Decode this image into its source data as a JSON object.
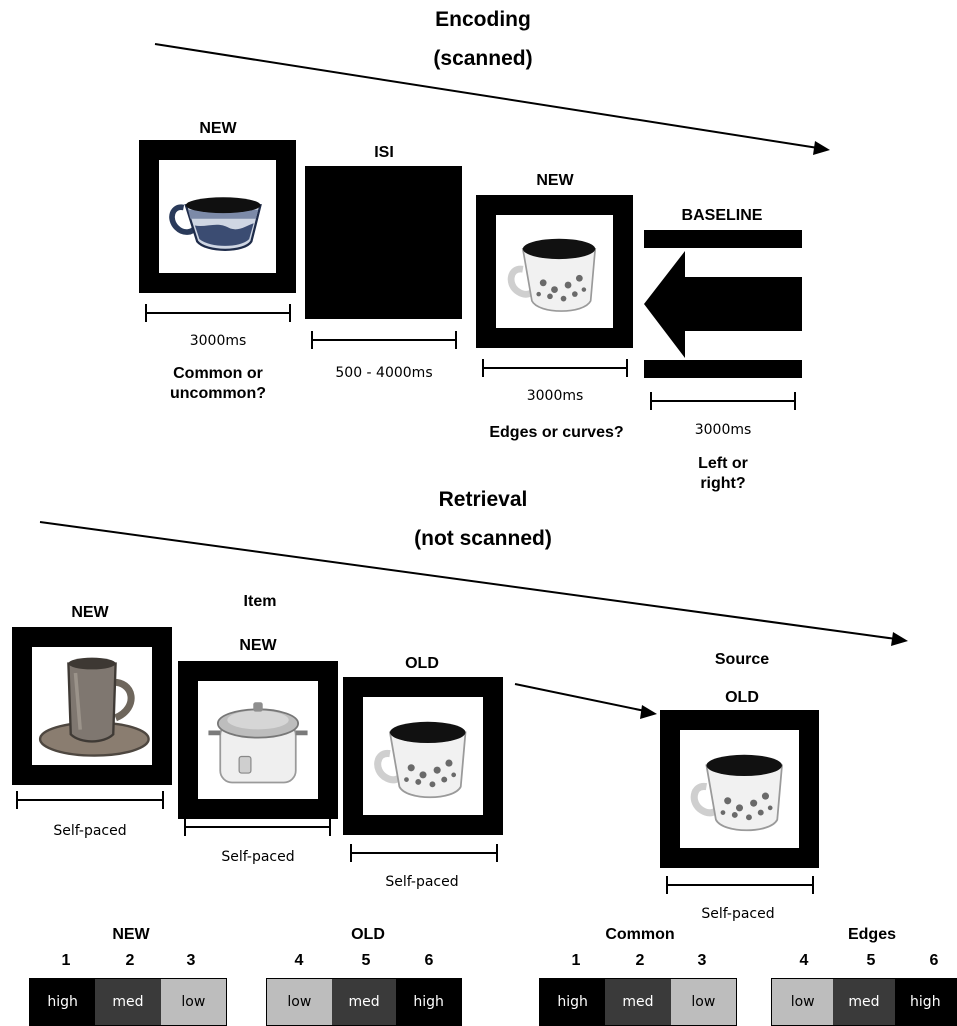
{
  "encoding": {
    "title": "Encoding",
    "subtitle": "(scanned)",
    "frames": [
      {
        "label": "NEW",
        "duration": "3000ms",
        "question": "Common or uncommon?"
      },
      {
        "label": "ISI",
        "duration": "500 - 4000ms"
      },
      {
        "label": "NEW",
        "duration": "3000ms",
        "question": "Edges or curves?"
      },
      {
        "label": "BASELINE",
        "duration": "3000ms",
        "question": "Left or right?"
      }
    ]
  },
  "retrieval": {
    "title": "Retrieval",
    "subtitle": "(not scanned)",
    "item_label": "Item",
    "source_label": "Source",
    "frames": [
      {
        "label": "NEW",
        "duration": "Self-paced"
      },
      {
        "label": "NEW",
        "duration": "Self-paced"
      },
      {
        "label": "OLD",
        "duration": "Self-paced"
      },
      {
        "label": "OLD",
        "duration": "Self-paced"
      }
    ]
  },
  "scales": {
    "item": {
      "groups": [
        "NEW",
        "OLD"
      ],
      "numbers": [
        "1",
        "2",
        "3",
        "4",
        "5",
        "6"
      ],
      "left": [
        "high",
        "med",
        "low"
      ],
      "right": [
        "low",
        "med",
        "high"
      ]
    },
    "source": {
      "groups": [
        "Common",
        "Edges"
      ],
      "numbers": [
        "1",
        "2",
        "3",
        "4",
        "5",
        "6"
      ],
      "left": [
        "high",
        "med",
        "low"
      ],
      "right": [
        "low",
        "med",
        "high"
      ]
    }
  },
  "colors": {
    "black": "#000000",
    "dark_gray": "#3a3a3a",
    "light_gray": "#bdbdbd",
    "white": "#ffffff"
  }
}
